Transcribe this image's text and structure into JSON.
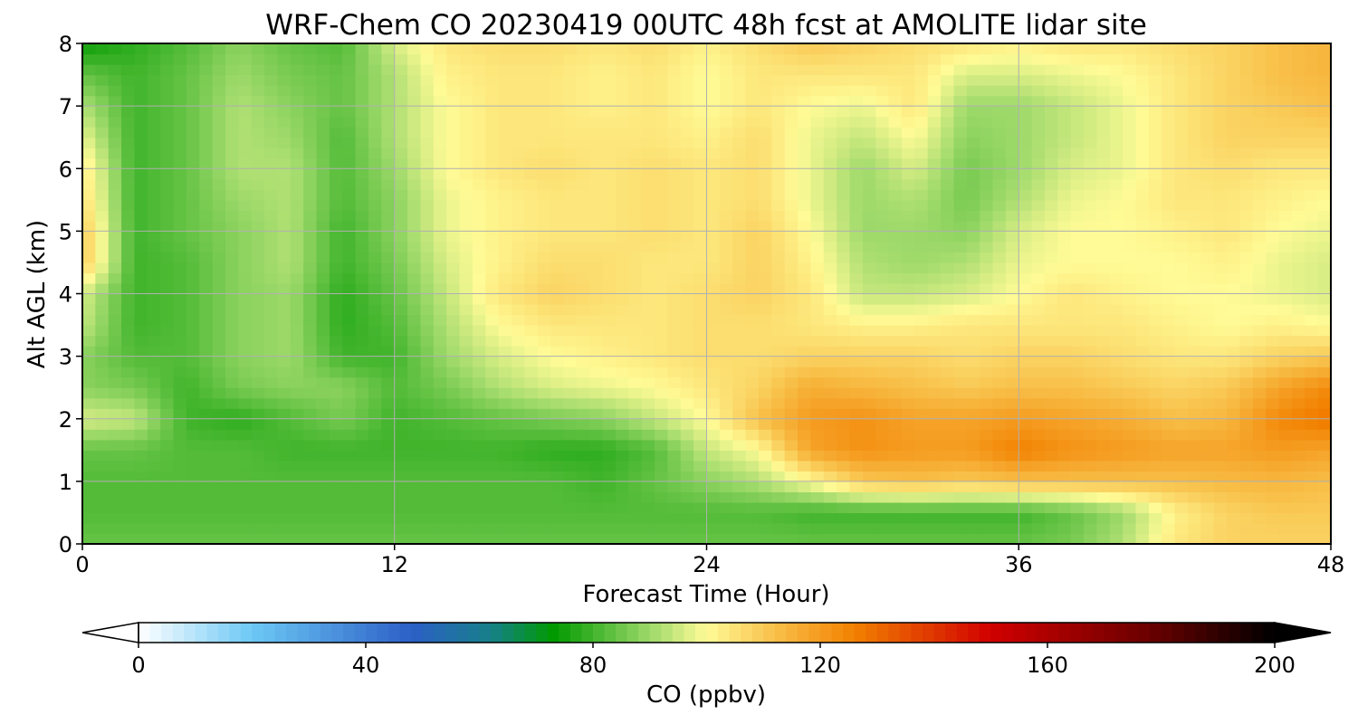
{
  "chart_data": {
    "type": "heatmap",
    "title": "WRF-Chem CO  20230419 00UTC 48h fcst at AMOLITE lidar site",
    "xlabel": "Forecast Time (Hour)",
    "ylabel": "Alt AGL (km)",
    "xlim": [
      0,
      48
    ],
    "ylim": [
      0,
      8
    ],
    "xticks": [
      "0",
      "12",
      "24",
      "36",
      "48"
    ],
    "yticks": [
      "0",
      "1",
      "2",
      "3",
      "4",
      "5",
      "6",
      "7",
      "8"
    ],
    "grid": true,
    "x": [
      0,
      2,
      4,
      6,
      8,
      10,
      12,
      14,
      16,
      18,
      20,
      22,
      24,
      26,
      28,
      30,
      32,
      34,
      36,
      38,
      40,
      42,
      44,
      46,
      48
    ],
    "y": [
      0,
      0.5,
      1,
      1.5,
      2,
      2.5,
      3,
      3.5,
      4,
      4.5,
      5,
      5.5,
      6,
      6.5,
      7,
      7.5,
      8
    ],
    "z": [
      [
        84,
        84,
        84,
        84,
        84,
        84,
        84,
        84,
        84,
        84,
        84,
        84,
        84,
        84,
        84,
        84,
        84,
        84,
        84,
        86,
        92,
        104,
        108,
        108,
        108
      ],
      [
        82,
        82,
        82,
        82,
        82,
        82,
        82,
        82,
        82,
        82,
        82,
        82,
        82,
        82,
        80,
        80,
        80,
        80,
        80,
        84,
        90,
        102,
        108,
        110,
        110
      ],
      [
        82,
        82,
        82,
        82,
        82,
        82,
        82,
        82,
        82,
        82,
        80,
        84,
        88,
        92,
        100,
        110,
        112,
        110,
        112,
        112,
        112,
        112,
        113,
        114,
        112
      ],
      [
        84,
        84,
        82,
        82,
        80,
        80,
        80,
        80,
        80,
        78,
        78,
        82,
        94,
        100,
        118,
        122,
        120,
        120,
        126,
        122,
        120,
        118,
        118,
        120,
        118
      ],
      [
        96,
        94,
        80,
        78,
        82,
        86,
        80,
        82,
        84,
        86,
        88,
        94,
        100,
        112,
        120,
        122,
        118,
        118,
        120,
        118,
        116,
        112,
        114,
        124,
        128
      ],
      [
        88,
        86,
        80,
        86,
        88,
        88,
        82,
        86,
        92,
        96,
        98,
        100,
        104,
        108,
        116,
        114,
        112,
        110,
        112,
        112,
        110,
        108,
        110,
        118,
        124
      ],
      [
        88,
        82,
        82,
        88,
        90,
        80,
        80,
        90,
        96,
        100,
        102,
        104,
        106,
        106,
        108,
        108,
        108,
        106,
        108,
        108,
        106,
        104,
        104,
        108,
        110
      ],
      [
        94,
        80,
        82,
        88,
        90,
        78,
        82,
        92,
        100,
        104,
        104,
        104,
        106,
        106,
        104,
        102,
        102,
        104,
        104,
        104,
        104,
        102,
        100,
        102,
        100
      ],
      [
        96,
        80,
        82,
        88,
        90,
        78,
        84,
        94,
        104,
        108,
        106,
        104,
        106,
        108,
        104,
        94,
        94,
        96,
        100,
        104,
        102,
        100,
        100,
        98,
        96
      ],
      [
        110,
        80,
        82,
        88,
        92,
        80,
        86,
        96,
        102,
        106,
        106,
        104,
        104,
        108,
        102,
        92,
        90,
        92,
        98,
        100,
        100,
        100,
        102,
        98,
        96
      ],
      [
        110,
        80,
        84,
        88,
        92,
        80,
        88,
        98,
        102,
        104,
        104,
        106,
        104,
        108,
        100,
        90,
        90,
        88,
        96,
        100,
        100,
        102,
        104,
        100,
        98
      ],
      [
        106,
        80,
        84,
        90,
        92,
        82,
        88,
        98,
        102,
        104,
        104,
        106,
        104,
        106,
        98,
        90,
        92,
        86,
        92,
        98,
        100,
        104,
        104,
        102,
        100
      ],
      [
        104,
        80,
        84,
        92,
        92,
        82,
        90,
        100,
        104,
        106,
        104,
        106,
        104,
        106,
        98,
        90,
        96,
        86,
        90,
        96,
        98,
        104,
        106,
        104,
        104
      ],
      [
        98,
        80,
        84,
        92,
        90,
        82,
        92,
        100,
        104,
        104,
        104,
        104,
        102,
        106,
        98,
        94,
        100,
        88,
        90,
        94,
        98,
        104,
        108,
        108,
        108
      ],
      [
        92,
        80,
        84,
        92,
        88,
        84,
        92,
        100,
        104,
        104,
        102,
        104,
        100,
        104,
        100,
        98,
        104,
        90,
        90,
        94,
        98,
        104,
        108,
        110,
        112
      ],
      [
        84,
        80,
        84,
        90,
        86,
        84,
        92,
        102,
        104,
        104,
        102,
        104,
        100,
        104,
        104,
        104,
        104,
        96,
        96,
        98,
        100,
        104,
        108,
        112,
        114
      ],
      [
        74,
        78,
        82,
        88,
        84,
        82,
        96,
        104,
        106,
        106,
        104,
        106,
        102,
        106,
        110,
        108,
        106,
        104,
        102,
        104,
        104,
        106,
        108,
        112,
        114
      ]
    ],
    "colorbar": {
      "label": "CO  (ppbv)",
      "min": 0,
      "max": 200,
      "ticks": [
        "0",
        "40",
        "80",
        "120",
        "160",
        "200"
      ],
      "extend": "both",
      "stops": [
        {
          "v": 0,
          "c": "#ffffff"
        },
        {
          "v": 20,
          "c": "#6cc8f5"
        },
        {
          "v": 48,
          "c": "#2c5fc6"
        },
        {
          "v": 62,
          "c": "#16808a"
        },
        {
          "v": 73,
          "c": "#009a00"
        },
        {
          "v": 90,
          "c": "#9dd96a"
        },
        {
          "v": 100,
          "c": "#fffb96"
        },
        {
          "v": 112,
          "c": "#f8bf48"
        },
        {
          "v": 126,
          "c": "#f28000"
        },
        {
          "v": 150,
          "c": "#d10000"
        },
        {
          "v": 178,
          "c": "#6a0000"
        },
        {
          "v": 200,
          "c": "#000000"
        }
      ]
    }
  }
}
